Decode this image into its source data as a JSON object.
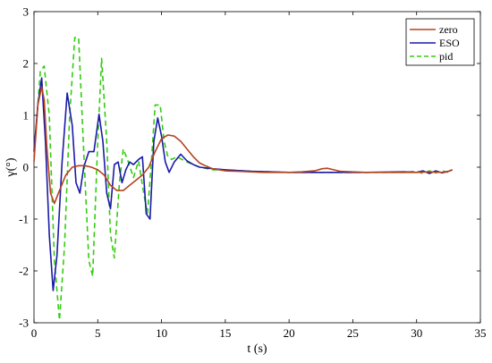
{
  "chart_data": {
    "type": "line",
    "xlabel": "t (s)",
    "ylabel": "γ(°)",
    "xlim": [
      0,
      35
    ],
    "ylim": [
      -3,
      3
    ],
    "xticks": [
      0,
      5,
      10,
      15,
      20,
      25,
      30,
      35
    ],
    "yticks": [
      -3,
      -2,
      -1,
      0,
      1,
      2,
      3
    ],
    "grid": false,
    "legend_position": "top-right",
    "series": [
      {
        "name": "zero",
        "color": "#b5421f",
        "dash": "solid",
        "x": [
          0,
          0.3,
          0.6,
          0.8,
          1.0,
          1.3,
          1.6,
          2.0,
          2.5,
          3.0,
          3.5,
          4.0,
          4.5,
          5.0,
          5.5,
          6.0,
          6.5,
          7.0,
          7.5,
          8.0,
          8.5,
          9.0,
          9.5,
          10.0,
          10.5,
          11.0,
          11.5,
          12.0,
          12.5,
          13.0,
          13.5,
          14.0,
          15.0,
          16.0,
          18.0,
          20.0,
          21.0,
          22.0,
          22.6,
          23.0,
          23.5,
          24.0,
          26.0,
          28.0,
          30.0,
          31.0,
          32.0,
          32.5,
          32.8
        ],
        "y": [
          0.1,
          1.2,
          1.55,
          1.3,
          0.4,
          -0.5,
          -0.7,
          -0.45,
          -0.15,
          0.0,
          0.03,
          0.03,
          0.0,
          -0.05,
          -0.15,
          -0.35,
          -0.45,
          -0.45,
          -0.35,
          -0.25,
          -0.15,
          0.0,
          0.3,
          0.55,
          0.62,
          0.6,
          0.5,
          0.35,
          0.2,
          0.08,
          0.02,
          -0.03,
          -0.07,
          -0.08,
          -0.1,
          -0.1,
          -0.09,
          -0.07,
          -0.03,
          -0.02,
          -0.05,
          -0.08,
          -0.1,
          -0.1,
          -0.1,
          -0.09,
          -0.1,
          -0.08,
          -0.05
        ]
      },
      {
        "name": "ESO",
        "color": "#1a1aa8",
        "dash": "solid",
        "x": [
          0,
          0.3,
          0.6,
          0.9,
          1.2,
          1.5,
          1.8,
          2.2,
          2.6,
          3.0,
          3.3,
          3.6,
          3.9,
          4.3,
          4.7,
          5.1,
          5.4,
          5.7,
          6.0,
          6.3,
          6.6,
          6.9,
          7.2,
          7.5,
          7.8,
          8.2,
          8.5,
          8.8,
          9.1,
          9.4,
          9.7,
          10.0,
          10.3,
          10.6,
          11.0,
          11.5,
          12.0,
          12.5,
          13.0,
          14.0,
          15.0,
          17.0,
          20.0,
          23.0,
          26.0,
          29.0,
          30.0,
          30.5,
          31.0,
          31.5,
          32.0,
          32.5,
          32.8
        ],
        "y": [
          0.3,
          1.2,
          1.72,
          0.5,
          -1.3,
          -2.38,
          -1.7,
          0.1,
          1.43,
          0.8,
          -0.3,
          -0.5,
          0.0,
          0.3,
          0.3,
          1.02,
          0.5,
          -0.5,
          -0.8,
          0.05,
          0.1,
          -0.3,
          -0.05,
          0.1,
          0.05,
          0.15,
          0.2,
          -0.9,
          -1.0,
          0.5,
          0.95,
          0.6,
          0.1,
          -0.1,
          0.1,
          0.25,
          0.12,
          0.05,
          0.0,
          -0.03,
          -0.05,
          -0.08,
          -0.1,
          -0.1,
          -0.1,
          -0.09,
          -0.1,
          -0.07,
          -0.12,
          -0.07,
          -0.11,
          -0.08,
          -0.05
        ]
      },
      {
        "name": "pid",
        "color": "#33cc11",
        "dash": "dashed",
        "x": [
          0,
          0.5,
          0.8,
          1.2,
          1.6,
          2.0,
          2.4,
          2.8,
          3.2,
          3.5,
          3.9,
          4.3,
          4.6,
          5.0,
          5.3,
          5.7,
          6.0,
          6.3,
          6.7,
          7.0,
          7.4,
          7.8,
          8.2,
          8.6,
          8.9,
          9.2,
          9.5,
          9.9,
          10.2,
          10.5,
          10.8,
          11.2,
          11.6,
          12.0,
          12.5,
          13.0,
          14.0,
          15.0,
          17.0,
          20.0,
          23.0,
          26.0,
          29.0,
          30.0,
          30.5,
          31.0,
          31.5,
          32.0,
          32.5,
          32.8
        ],
        "y": [
          0.2,
          1.85,
          1.95,
          1.0,
          -1.8,
          -2.95,
          -1.5,
          1.0,
          2.5,
          2.5,
          0.3,
          -1.8,
          -2.1,
          0.5,
          2.1,
          0.5,
          -1.3,
          -1.75,
          -0.3,
          0.35,
          0.1,
          -0.2,
          0.12,
          -0.5,
          -0.9,
          0.1,
          1.2,
          1.2,
          0.5,
          0.2,
          0.15,
          0.2,
          0.15,
          0.1,
          0.05,
          0.0,
          -0.05,
          -0.05,
          -0.08,
          -0.1,
          -0.1,
          -0.1,
          -0.1,
          -0.08,
          -0.12,
          -0.07,
          -0.11,
          -0.07,
          -0.1,
          -0.05
        ]
      }
    ]
  }
}
